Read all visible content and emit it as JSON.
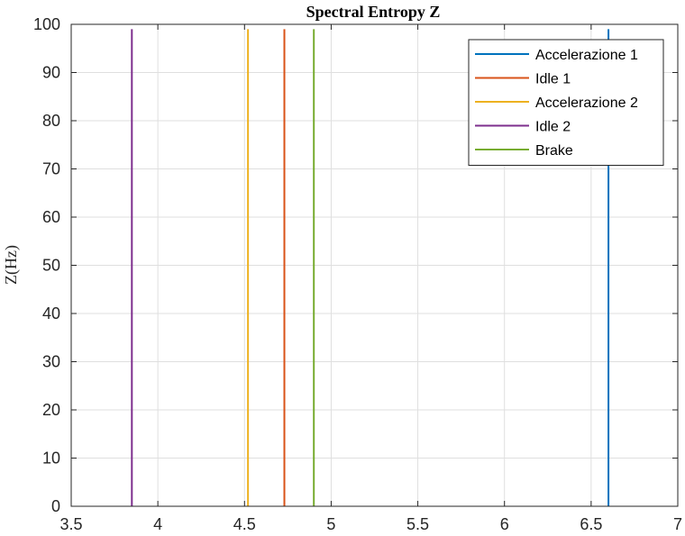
{
  "chart_data": {
    "type": "line",
    "title": "Spectral Entropy Z",
    "xlabel": "",
    "ylabel": "Z(Hz)",
    "xlim": [
      3.5,
      7
    ],
    "ylim": [
      0,
      100
    ],
    "xticks": [
      "3.5",
      "4",
      "4.5",
      "5",
      "5.5",
      "6",
      "6.5",
      "7"
    ],
    "yticks": [
      "0",
      "10",
      "20",
      "30",
      "40",
      "50",
      "60",
      "70",
      "80",
      "90",
      "100"
    ],
    "grid": true,
    "legend_position": "top-right",
    "series": [
      {
        "name": "Accelerazione 1",
        "color": "#0072BD",
        "x": [
          6.6,
          6.6
        ],
        "y": [
          0,
          99
        ]
      },
      {
        "name": "Idle 1",
        "color": "#D95319",
        "x": [
          4.73,
          4.73
        ],
        "y": [
          0,
          99
        ]
      },
      {
        "name": "Accelerazione 2",
        "color": "#EDB120",
        "x": [
          4.52,
          4.52
        ],
        "y": [
          0,
          99
        ]
      },
      {
        "name": "Idle 2",
        "color": "#7E2F8E",
        "x": [
          3.85,
          3.85
        ],
        "y": [
          0,
          99
        ]
      },
      {
        "name": "Brake",
        "color": "#77AC30",
        "x": [
          4.9,
          4.9
        ],
        "y": [
          0,
          99
        ]
      }
    ]
  }
}
